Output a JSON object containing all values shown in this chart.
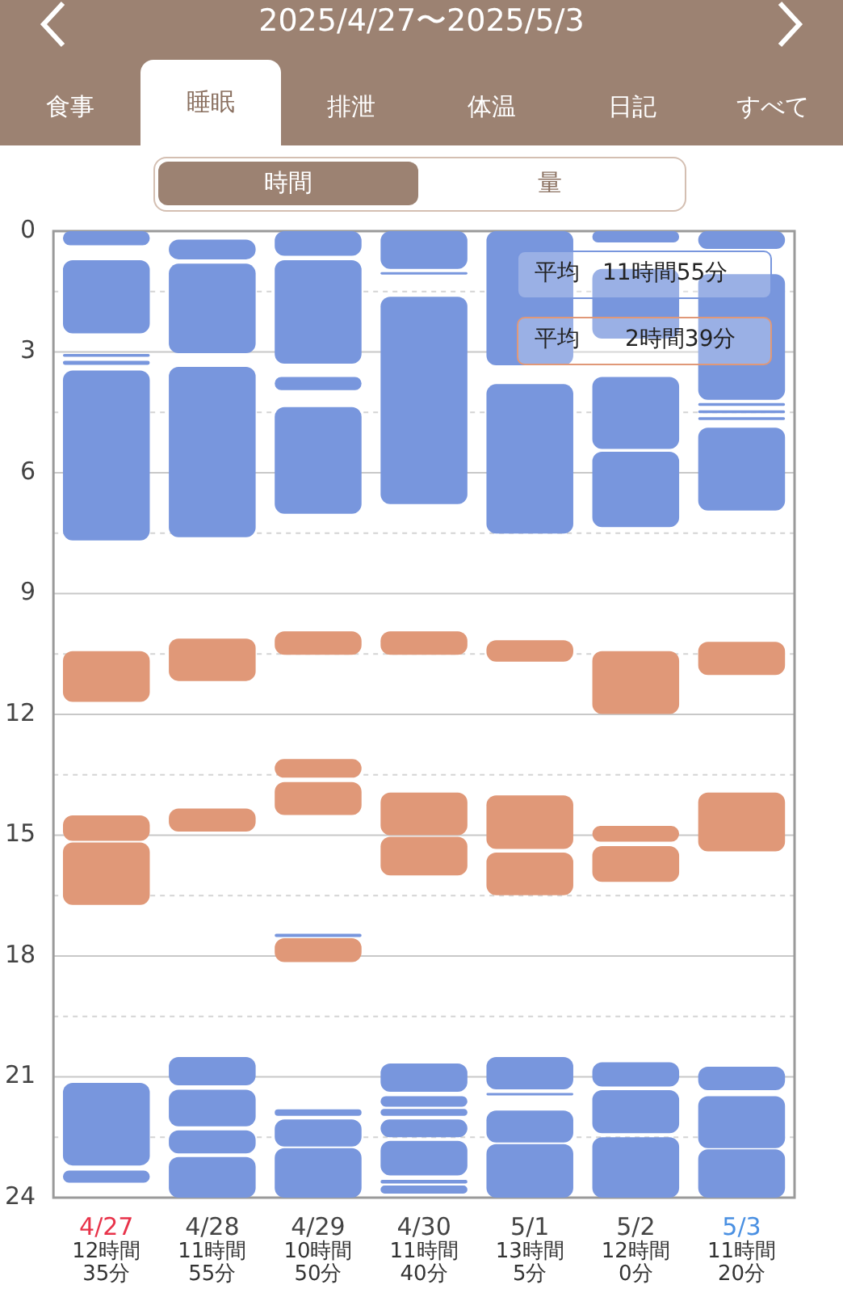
{
  "chart_data": {
    "type": "bar",
    "title": "2025/4/27〜2025/5/3",
    "annotations": [
      "食事",
      "睡眠",
      "排泄",
      "体温",
      "日記",
      "すべて",
      "時間",
      "量",
      "平均　11時間55分",
      "平均　　2時間39分"
    ],
    "categories": [
      "4/27",
      "4/28",
      "4/29",
      "4/30",
      "5/1",
      "5/2",
      "5/3"
    ],
    "totals": [
      "12時間35分",
      "11時間55分",
      "10時間50分",
      "11時間40分",
      "13時間5分",
      "12時間0分",
      "11時間20分"
    ],
    "ylim": [
      24,
      0
    ],
    "yticks": [
      0,
      {
        "value": 1.5,
        "label": null
      },
      3,
      {
        "value": 4.5,
        "label": null
      },
      6,
      {
        "value": 7.5,
        "label": null
      },
      9,
      {
        "value": 10.5,
        "label": null
      },
      12,
      {
        "value": 13.5,
        "label": null
      },
      15,
      {
        "value": 16.5,
        "label": null
      },
      18,
      {
        "value": 19.5,
        "label": null
      },
      21,
      {
        "value": 22.5,
        "label": null
      },
      24
    ],
    "grid": "y",
    "series": [
      {
        "color": "#7896dd",
        "base": [
          0,
          0.21,
          0,
          0,
          0,
          0,
          0
        ],
        "values": [
          0.35,
          0.49,
          0.61,
          0.94,
          3.33,
          0.28,
          0.44
        ]
      },
      {
        "color": "#7896dd",
        "base": [
          0.72,
          0.81,
          0.72,
          1.02,
          3.8,
          0.94,
          1.07
        ],
        "values": [
          1.82,
          2.22,
          2.57,
          0.06,
          3.71,
          1.73,
          3.12
        ]
      },
      {
        "color": "#7896dd",
        "base": [
          3.05,
          3.37,
          3.62,
          1.63,
          20.51,
          3.62,
          4.27
        ],
        "values": [
          0.07,
          4.23,
          0.33,
          5.15,
          0.8,
          1.79,
          0.07
        ]
      },
      {
        "color": "#7896dd",
        "base": [
          3.22,
          20.51,
          4.37,
          20.67,
          21.4,
          5.48,
          4.45
        ],
        "values": [
          0.1,
          0.7,
          2.65,
          0.7,
          0.06,
          1.87,
          0.07
        ]
      },
      {
        "color": "#7896dd",
        "base": [
          3.46,
          21.32,
          17.45,
          21.48,
          21.84,
          20.64,
          4.62
        ],
        "values": [
          4.22,
          0.91,
          0.08,
          0.26,
          0.79,
          0.6,
          0.07
        ]
      },
      {
        "color": "#7896dd",
        "base": [
          21.15,
          22.33,
          21.81,
          21.8,
          22.67,
          21.33,
          4.88
        ],
        "values": [
          2.05,
          0.57,
          0.16,
          0.17,
          1.33,
          1.07,
          2.06
        ]
      },
      {
        "color": "#7896dd",
        "base": [
          23.33,
          22.99,
          22.06,
          22.06,
          null,
          22.5,
          20.75
        ],
        "values": [
          0.3,
          1.01,
          0.67,
          0.44,
          null,
          1.5,
          0.58
        ]
      },
      {
        "color": "#7896dd",
        "base": [
          null,
          null,
          22.77,
          22.59,
          null,
          null,
          21.48
        ],
        "values": [
          null,
          null,
          1.23,
          0.86,
          null,
          null,
          1.29
        ]
      },
      {
        "color": "#7896dd",
        "base": [
          null,
          null,
          null,
          23.56,
          null,
          null,
          22.8
        ],
        "values": [
          null,
          null,
          null,
          0.09,
          null,
          null,
          1.2
        ]
      },
      {
        "color": "#7896dd",
        "base": [
          null,
          null,
          null,
          23.7,
          null,
          null,
          null
        ],
        "values": [
          null,
          null,
          null,
          0.2,
          null,
          null,
          null
        ]
      },
      {
        "color": "#e09878",
        "base": [
          10.43,
          10.12,
          9.94,
          9.94,
          10.16,
          10.43,
          10.2
        ],
        "values": [
          1.26,
          1.05,
          0.58,
          0.58,
          0.53,
          1.56,
          0.82
        ]
      },
      {
        "color": "#e09878",
        "base": [
          14.51,
          14.34,
          13.11,
          13.94,
          14.01,
          14.77,
          13.94
        ],
        "values": [
          0.63,
          0.57,
          0.46,
          1.06,
          1.33,
          0.39,
          1.46
        ]
      },
      {
        "color": "#e09878",
        "base": [
          15.18,
          null,
          13.68,
          15.04,
          15.43,
          15.27,
          null
        ],
        "values": [
          1.55,
          null,
          0.82,
          0.96,
          1.06,
          0.89,
          null
        ]
      },
      {
        "color": "#e09878",
        "base": [
          null,
          null,
          17.56,
          null,
          null,
          null,
          null
        ],
        "values": [
          null,
          null,
          0.59,
          null,
          null,
          null,
          null
        ]
      }
    ]
  }
}
